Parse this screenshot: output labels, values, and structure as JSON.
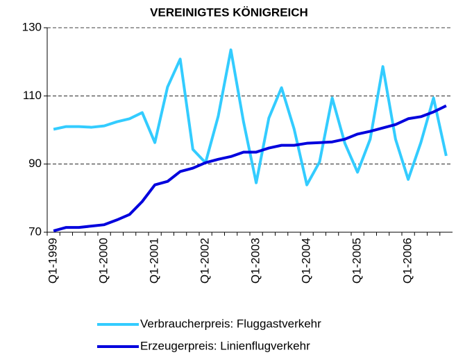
{
  "chart_data": {
    "type": "line",
    "title": "VEREINIGTES KÖNIGREICH",
    "categories": [
      "Q1-1999",
      null,
      null,
      null,
      "Q1-2000",
      null,
      null,
      null,
      "Q1-2001",
      null,
      null,
      null,
      "Q1-2002",
      null,
      null,
      null,
      "Q1-2003",
      null,
      null,
      null,
      "Q1-2004",
      null,
      null,
      null,
      "Q1-2005",
      null,
      null,
      null,
      "Q1-2006",
      null,
      null,
      null
    ],
    "series": [
      {
        "name": "Verbraucherpreis: Fluggastverkehr",
        "color": "#33ccff",
        "values": [
          100.2,
          101,
          101,
          100.8,
          101.2,
          102.4,
          103.3,
          105.1,
          96.3,
          112.6,
          120.8,
          94.3,
          90.4,
          104,
          123.5,
          102.4,
          84.5,
          103.5,
          112.4,
          100.2,
          83.9,
          90.6,
          109.4,
          96.1,
          87.6,
          97.3,
          118.6,
          97.3,
          85.5,
          96.3,
          109.4,
          92.4
        ]
      },
      {
        "name": "Erzeugerpreis: Linienflugverkehr",
        "color": "#0000dd",
        "values": [
          70.4,
          71.4,
          71.4,
          71.8,
          72.2,
          73.6,
          75.2,
          79,
          83.9,
          84.9,
          87.8,
          88.8,
          90.4,
          91.4,
          92.2,
          93.5,
          93.5,
          94.7,
          95.5,
          95.5,
          96.1,
          96.3,
          96.5,
          97.3,
          98.8,
          99.6,
          100.6,
          101.6,
          103.3,
          103.9,
          105.3,
          107.1
        ]
      }
    ],
    "ylim": [
      70,
      130
    ],
    "yticks": [
      70,
      90,
      110,
      130
    ],
    "grid": true
  }
}
